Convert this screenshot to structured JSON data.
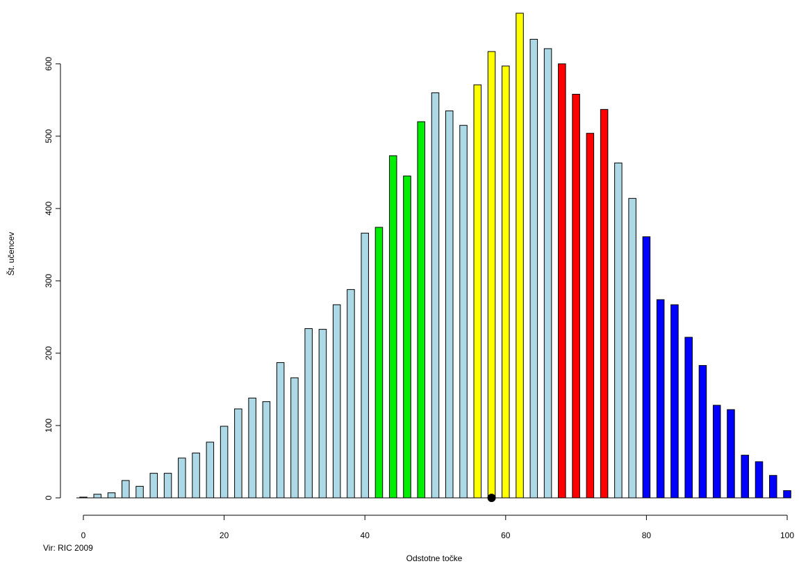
{
  "chart_data": {
    "type": "bar",
    "xlabel": "Odstotne točke",
    "ylabel": "Št. učencev",
    "source_note": "Vir: RIC 2009",
    "xlim": [
      0,
      100
    ],
    "ylim": [
      0,
      670
    ],
    "x_ticks": [
      0,
      20,
      40,
      60,
      80,
      100
    ],
    "y_ticks": [
      0,
      100,
      200,
      300,
      400,
      500,
      600
    ],
    "grid": false,
    "x": [
      0,
      2,
      4,
      6,
      8,
      10,
      12,
      14,
      16,
      18,
      20,
      22,
      24,
      26,
      28,
      30,
      32,
      34,
      36,
      38,
      40,
      42,
      44,
      46,
      48,
      50,
      52,
      54,
      56,
      58,
      60,
      62,
      64,
      66,
      68,
      70,
      72,
      74,
      76,
      78,
      80,
      82,
      84,
      86,
      88,
      90,
      92,
      94,
      96,
      98,
      100
    ],
    "values": [
      1,
      5,
      7,
      24,
      16,
      34,
      34,
      55,
      62,
      77,
      99,
      123,
      138,
      133,
      187,
      166,
      234,
      233,
      267,
      288,
      366,
      374,
      473,
      445,
      520,
      560,
      535,
      515,
      571,
      617,
      597,
      670,
      634,
      621,
      600,
      558,
      504,
      537,
      463,
      414,
      361,
      274,
      267,
      222,
      183,
      128,
      122,
      59,
      50,
      31,
      10
    ],
    "bar_colors": [
      "#add8e6",
      "#add8e6",
      "#add8e6",
      "#add8e6",
      "#add8e6",
      "#add8e6",
      "#add8e6",
      "#add8e6",
      "#add8e6",
      "#add8e6",
      "#add8e6",
      "#add8e6",
      "#add8e6",
      "#add8e6",
      "#add8e6",
      "#add8e6",
      "#add8e6",
      "#add8e6",
      "#add8e6",
      "#add8e6",
      "#add8e6",
      "#00ee00",
      "#00ee00",
      "#00ee00",
      "#00ee00",
      "#add8e6",
      "#add8e6",
      "#add8e6",
      "#ffff00",
      "#ffff00",
      "#ffff00",
      "#ffff00",
      "#add8e6",
      "#add8e6",
      "#ff0000",
      "#ff0000",
      "#ff0000",
      "#ff0000",
      "#add8e6",
      "#add8e6",
      "#0000ff",
      "#0000ff",
      "#0000ff",
      "#0000ff",
      "#0000ff",
      "#0000ff",
      "#0000ff",
      "#0000ff",
      "#0000ff",
      "#0000ff",
      "#0000ff"
    ],
    "marker": {
      "x": 58,
      "y": 0,
      "color": "#000000"
    }
  }
}
